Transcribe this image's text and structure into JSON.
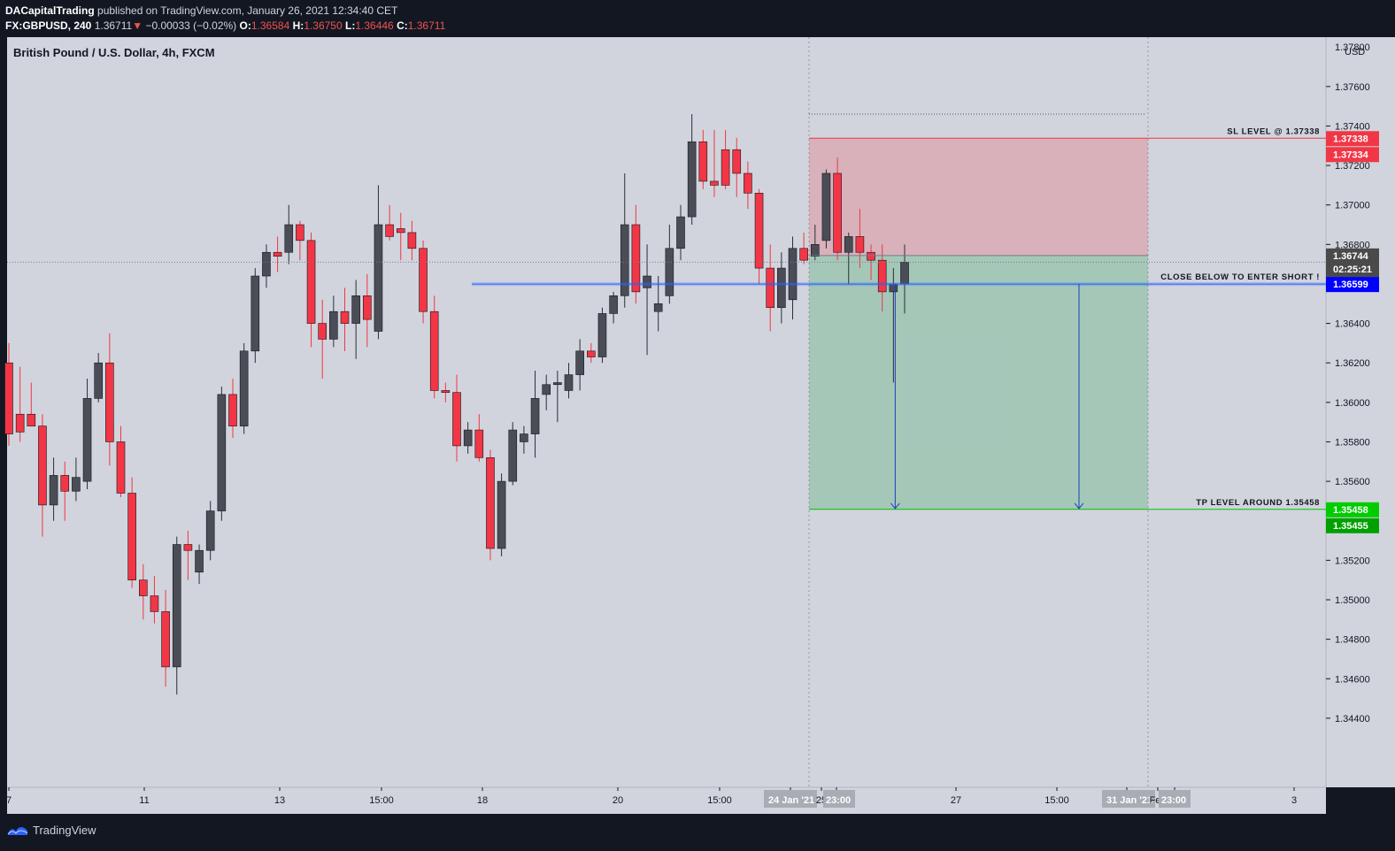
{
  "header": {
    "author": "DACapitalTrading",
    "published": "published on TradingView.com, January 26, 2021 12:34:40 CET",
    "symbol": "FX:GBPUSD, 240",
    "last": "1.36711",
    "arrow": "▼",
    "change": "−0.00033 (−0.02%)",
    "o_label": "O:",
    "o_value": "1.36584",
    "h_label": "H:",
    "h_value": "1.36750",
    "l_label": "L:",
    "l_value": "1.36446",
    "c_label": "C:",
    "c_value": "1.36711"
  },
  "chart_data": {
    "type": "candlestick",
    "title": "British Pound / U.S. Dollar, 4h, FXCM",
    "currency": "USD",
    "y_axis_ticks": [
      "1.37600",
      "1.37400",
      "1.37200",
      "1.37000",
      "1.36800",
      "1.36400",
      "1.36200",
      "1.36000",
      "1.35800",
      "1.35600",
      "1.35200",
      "1.35000",
      "1.34800",
      "1.34600",
      "1.34400"
    ],
    "y_axis_top_partial": "1.37800",
    "x_axis_ticks": [
      "7",
      "11",
      "13",
      "15:00",
      "18",
      "20",
      "15:00",
      "24 Jan '21",
      "25",
      "23:00",
      "27",
      "15:00",
      "31 Jan '21",
      "Feb",
      "23:00",
      "3"
    ],
    "price_labels": [
      {
        "text": "1.37338",
        "color": "#f23645"
      },
      {
        "text": "1.37334",
        "color": "#f23645"
      },
      {
        "text": "1.36744",
        "color": "#4a4a4a"
      },
      {
        "text": "1.36711",
        "color": "#4a4a4a"
      },
      {
        "text": "02:25:21",
        "color": "#4a4a4a"
      },
      {
        "text": "1.36599",
        "color": "#0000ff"
      },
      {
        "text": "1.35458",
        "color": "#00cc00"
      },
      {
        "text": "1.35455",
        "color": "#00a000"
      }
    ],
    "annotations": {
      "sl": "SL LEVEL @ 1.37338",
      "entry": "CLOSE BELOW TO ENTER SHORT !",
      "tp": "TP LEVEL AROUND 1.35458"
    },
    "levels": {
      "sl": 1.37338,
      "entry": 1.36599,
      "open_line": 1.36744,
      "tp": 1.35458,
      "upper_dotted": 1.3746
    },
    "ylim": [
      1.3405,
      1.3785
    ],
    "candles": [
      [
        1.362,
        1.363,
        1.3578,
        1.3584
      ],
      [
        1.3594,
        1.3618,
        1.358,
        1.3585
      ],
      [
        1.3594,
        1.361,
        1.3588,
        1.3588
      ],
      [
        1.3588,
        1.3594,
        1.3532,
        1.3548
      ],
      [
        1.3548,
        1.3572,
        1.354,
        1.3563
      ],
      [
        1.3563,
        1.357,
        1.354,
        1.3555
      ],
      [
        1.3555,
        1.3572,
        1.355,
        1.3562
      ],
      [
        1.356,
        1.3612,
        1.3556,
        1.3602
      ],
      [
        1.3602,
        1.3625,
        1.36,
        1.362
      ],
      [
        1.362,
        1.3635,
        1.3568,
        1.358
      ],
      [
        1.358,
        1.3588,
        1.3552,
        1.3554
      ],
      [
        1.3554,
        1.3562,
        1.3506,
        1.351
      ],
      [
        1.351,
        1.3518,
        1.349,
        1.3502
      ],
      [
        1.3502,
        1.3512,
        1.3488,
        1.3494
      ],
      [
        1.3494,
        1.3505,
        1.3456,
        1.3466
      ],
      [
        1.3466,
        1.3532,
        1.3452,
        1.3528
      ],
      [
        1.3528,
        1.3535,
        1.351,
        1.3525
      ],
      [
        1.3514,
        1.3528,
        1.3508,
        1.3525
      ],
      [
        1.3525,
        1.355,
        1.352,
        1.3545
      ],
      [
        1.3545,
        1.3608,
        1.354,
        1.3604
      ],
      [
        1.3604,
        1.3612,
        1.3582,
        1.3588
      ],
      [
        1.3588,
        1.363,
        1.3584,
        1.3626
      ],
      [
        1.3626,
        1.3668,
        1.362,
        1.3664
      ],
      [
        1.3664,
        1.368,
        1.3658,
        1.3676
      ],
      [
        1.3676,
        1.3684,
        1.3666,
        1.3674
      ],
      [
        1.3676,
        1.37,
        1.367,
        1.369
      ],
      [
        1.369,
        1.3692,
        1.3672,
        1.3682
      ],
      [
        1.3682,
        1.3686,
        1.3628,
        1.364
      ],
      [
        1.364,
        1.3652,
        1.3612,
        1.3632
      ],
      [
        1.3632,
        1.3654,
        1.3628,
        1.3646
      ],
      [
        1.3646,
        1.3658,
        1.3626,
        1.364
      ],
      [
        1.364,
        1.3662,
        1.3622,
        1.3654
      ],
      [
        1.3654,
        1.3665,
        1.3628,
        1.3642
      ],
      [
        1.3636,
        1.371,
        1.3632,
        1.369
      ],
      [
        1.369,
        1.37,
        1.3682,
        1.3684
      ],
      [
        1.3688,
        1.3696,
        1.3672,
        1.3686
      ],
      [
        1.3686,
        1.3692,
        1.3672,
        1.3678
      ],
      [
        1.3678,
        1.3682,
        1.364,
        1.3646
      ],
      [
        1.3646,
        1.3654,
        1.3602,
        1.3606
      ],
      [
        1.3606,
        1.361,
        1.36,
        1.3605
      ],
      [
        1.3605,
        1.3614,
        1.357,
        1.3578
      ],
      [
        1.3578,
        1.359,
        1.3574,
        1.3586
      ],
      [
        1.3586,
        1.3594,
        1.357,
        1.3572
      ],
      [
        1.3572,
        1.3576,
        1.352,
        1.3526
      ],
      [
        1.3526,
        1.3564,
        1.3522,
        1.356
      ],
      [
        1.356,
        1.359,
        1.3558,
        1.3586
      ],
      [
        1.358,
        1.3588,
        1.3574,
        1.3584
      ],
      [
        1.3584,
        1.3616,
        1.3572,
        1.3602
      ],
      [
        1.3604,
        1.3614,
        1.3596,
        1.3609
      ],
      [
        1.3609,
        1.3616,
        1.359,
        1.361
      ],
      [
        1.3606,
        1.362,
        1.3602,
        1.3614
      ],
      [
        1.3614,
        1.3632,
        1.3606,
        1.3626
      ],
      [
        1.3626,
        1.363,
        1.362,
        1.3623
      ],
      [
        1.3623,
        1.3648,
        1.362,
        1.3645
      ],
      [
        1.3645,
        1.3656,
        1.364,
        1.3654
      ],
      [
        1.3654,
        1.3716,
        1.3648,
        1.369
      ],
      [
        1.369,
        1.37,
        1.365,
        1.3656
      ],
      [
        1.3658,
        1.368,
        1.3624,
        1.3664
      ],
      [
        1.3646,
        1.3664,
        1.3636,
        1.365
      ],
      [
        1.3654,
        1.369,
        1.365,
        1.3678
      ],
      [
        1.3678,
        1.37,
        1.3672,
        1.3694
      ],
      [
        1.3694,
        1.3746,
        1.369,
        1.3732
      ],
      [
        1.3732,
        1.3738,
        1.3708,
        1.3712
      ],
      [
        1.3712,
        1.3738,
        1.3704,
        1.371
      ],
      [
        1.3728,
        1.3738,
        1.3708,
        1.371
      ],
      [
        1.3728,
        1.3734,
        1.3704,
        1.3716
      ],
      [
        1.3716,
        1.3722,
        1.3698,
        1.3706
      ],
      [
        1.3706,
        1.3708,
        1.366,
        1.3668
      ],
      [
        1.3668,
        1.368,
        1.3636,
        1.3648
      ],
      [
        1.3648,
        1.3676,
        1.364,
        1.3668
      ],
      [
        1.3652,
        1.3684,
        1.3642,
        1.3678
      ],
      [
        1.3678,
        1.3686,
        1.367,
        1.3672
      ],
      [
        1.3674,
        1.369,
        1.3672,
        1.368
      ],
      [
        1.3682,
        1.3718,
        1.3678,
        1.3716
      ],
      [
        1.3716,
        1.3724,
        1.3672,
        1.3676
      ],
      [
        1.3676,
        1.3686,
        1.366,
        1.3684
      ],
      [
        1.3684,
        1.3698,
        1.3668,
        1.3676
      ],
      [
        1.3676,
        1.368,
        1.3662,
        1.3672
      ],
      [
        1.3672,
        1.368,
        1.3646,
        1.3656
      ],
      [
        1.3656,
        1.3668,
        1.361,
        1.366
      ],
      [
        1.366,
        1.368,
        1.3645,
        1.3671
      ]
    ]
  },
  "footer": {
    "brand": "TradingView"
  }
}
